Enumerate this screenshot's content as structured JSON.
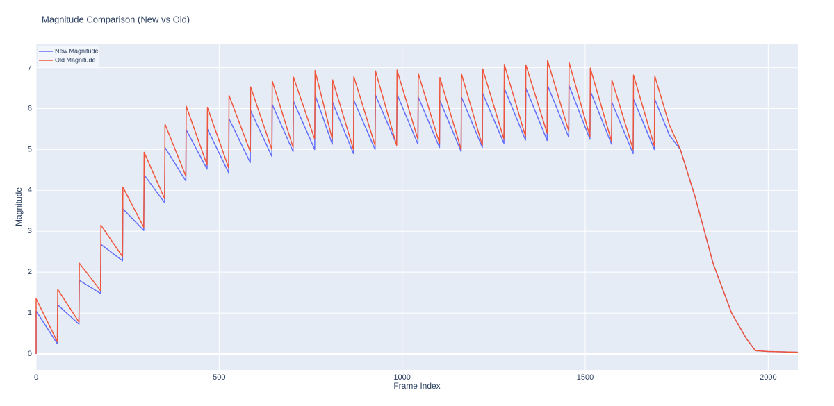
{
  "chart_data": {
    "type": "line",
    "title": "Magnitude Comparison (New vs Old)",
    "x_label": "Frame Index",
    "y_label": "Magnitude",
    "x": [
      0,
      0,
      58,
      59,
      117,
      118,
      176,
      177,
      236,
      237,
      294,
      295,
      351,
      352,
      409,
      410,
      467,
      468,
      526,
      527,
      585,
      586,
      644,
      645,
      702,
      703,
      761,
      762,
      809,
      810,
      867,
      868,
      926,
      927,
      985,
      986,
      1043,
      1044,
      1102,
      1103,
      1161,
      1162,
      1219,
      1220,
      1278,
      1279,
      1337,
      1338,
      1396,
      1397,
      1455,
      1456,
      1513,
      1514,
      1572,
      1573,
      1631,
      1632,
      1689,
      1690,
      1730,
      1760,
      1800,
      1850,
      1900,
      1940,
      1965,
      2000,
      2081
    ],
    "series": [
      {
        "name": "New Magnitude",
        "color": "#636efa",
        "values": [
          0,
          1.05,
          0.25,
          1.2,
          0.73,
          1.8,
          1.48,
          2.68,
          2.28,
          3.55,
          3.02,
          4.38,
          3.7,
          5.05,
          4.23,
          5.48,
          4.52,
          5.5,
          4.43,
          5.75,
          4.68,
          5.95,
          4.83,
          6.1,
          4.95,
          6.18,
          5.0,
          6.33,
          5.13,
          6.15,
          4.9,
          6.2,
          5.0,
          6.33,
          5.12,
          6.35,
          5.13,
          6.28,
          5.05,
          6.2,
          4.95,
          6.28,
          5.05,
          6.37,
          5.15,
          6.5,
          5.23,
          6.5,
          5.22,
          6.57,
          5.3,
          6.56,
          5.25,
          6.43,
          5.13,
          6.15,
          4.9,
          6.23,
          5.0,
          6.23,
          5.35,
          5.0,
          3.85,
          2.2,
          1.0,
          0.38,
          0.08,
          0.06,
          0.04
        ]
      },
      {
        "name": "Old Magnitude",
        "color": "#ef553b",
        "values": [
          0,
          1.35,
          0.3,
          1.58,
          0.78,
          2.22,
          1.55,
          3.15,
          2.38,
          4.08,
          3.1,
          4.93,
          3.8,
          5.62,
          4.35,
          6.06,
          4.62,
          6.03,
          4.55,
          6.32,
          4.95,
          6.53,
          5.0,
          6.68,
          5.05,
          6.77,
          5.25,
          6.93,
          5.25,
          6.7,
          5.0,
          6.78,
          5.1,
          6.92,
          5.1,
          6.94,
          5.25,
          6.86,
          5.15,
          6.76,
          5.0,
          6.85,
          5.1,
          6.97,
          5.25,
          7.08,
          5.32,
          7.07,
          5.4,
          7.18,
          5.45,
          7.13,
          5.32,
          6.99,
          5.2,
          6.7,
          5.0,
          6.82,
          5.08,
          6.8,
          5.6,
          5.0,
          3.85,
          2.2,
          1.0,
          0.38,
          0.08,
          0.06,
          0.04
        ]
      }
    ],
    "xlim": [
      0,
      2081
    ],
    "xticks": [
      0,
      500,
      1000,
      1500,
      2000
    ],
    "ylim": [
      -0.39,
      7.57
    ],
    "yticks": [
      0,
      1,
      2,
      3,
      4,
      5,
      6,
      7
    ],
    "grid": true,
    "legend": "top-left"
  }
}
